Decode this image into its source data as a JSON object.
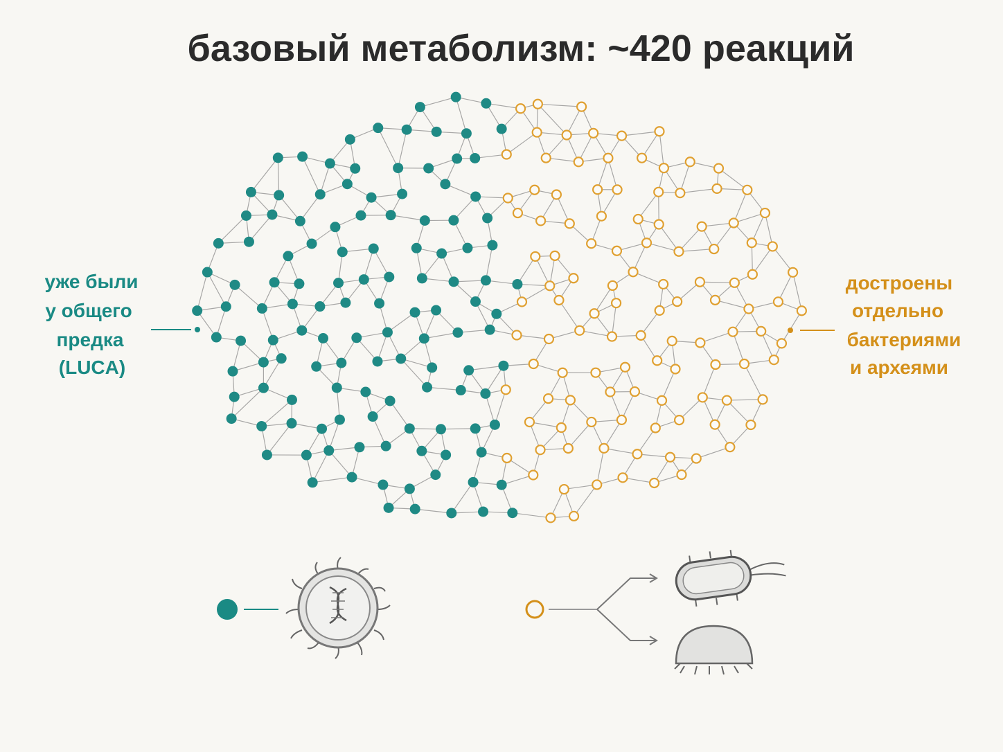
{
  "title": "базовый метаболизм: ~420 реакций",
  "left_label": {
    "lines": [
      "уже были",
      "у общего",
      "предка",
      "(LUCA)"
    ]
  },
  "right_label": {
    "lines": [
      "достроены",
      "отдельно",
      "бактериями",
      "и археями"
    ]
  }
}
